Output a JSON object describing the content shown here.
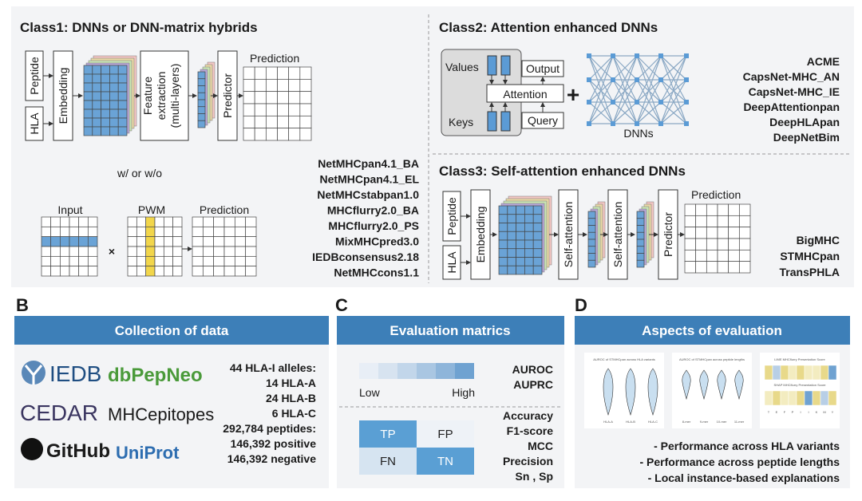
{
  "panel_a": {
    "class1": {
      "title": "Class1: DNNs or DNN-matrix hybrids",
      "peptide": "Peptide",
      "hla": "HLA",
      "embedding": "Embedding",
      "feature": [
        "Feature",
        "extraction",
        "(multi-layers)"
      ],
      "predictor": "Predictor",
      "prediction": "Prediction",
      "with_or_without": "w/ or w/o",
      "input": "Input",
      "times": "×",
      "pwm": "PWM",
      "prediction_pwm": "Prediction",
      "tools": [
        "NetMHCpan4.1_BA",
        "NetMHCpan4.1_EL",
        "NetMHCstabpan1.0",
        "MHCflurry2.0_BA",
        "MHCflurry2.0_PS",
        "MixMHCpred3.0",
        "IEDBconsensus2.18",
        "NetMHCcons1.1"
      ]
    },
    "class2": {
      "title": "Class2: Attention enhanced DNNs",
      "values": "Values",
      "keys": "Keys",
      "attention": "Attention",
      "output": "Output",
      "query": "Query",
      "plus": "+",
      "dnns": "DNNs",
      "tools": [
        "ACME",
        "CapsNet-MHC_AN",
        "CapsNet-MHC_IE",
        "DeepAttentionpan",
        "DeepHLApan",
        "DeepNetBim"
      ]
    },
    "class3": {
      "title": "Class3: Self-attention enhanced DNNs",
      "peptide": "Peptide",
      "hla": "HLA",
      "embedding": "Embedding",
      "self_attention_1": "Self-attention",
      "self_attention_2": "Self-attention",
      "predictor": "Predictor",
      "prediction": "Prediction",
      "tools": [
        "BigMHC",
        "STMHCpan",
        "TransPHLA"
      ]
    }
  },
  "panel_b": {
    "letter": "B",
    "header": "Collection of data",
    "logos": [
      "IEDB",
      "dbPepNeo",
      "CEDAR",
      "MHCepitopes",
      "GitHub",
      "UniProt"
    ],
    "stats": [
      "44 HLA-I alleles:",
      "14 HLA-A",
      "24 HLA-B",
      "6 HLA-C",
      "292,784 peptides:",
      "146,392 positive",
      "146,392 negative"
    ]
  },
  "panel_c": {
    "letter": "C",
    "header": "Evaluation matrics",
    "low": "Low",
    "high": "High",
    "curve_metrics": [
      "AUROC",
      "AUPRC"
    ],
    "confusion": [
      "TP",
      "FP",
      "FN",
      "TN"
    ],
    "metrics": [
      "Accuracy",
      "F1-score",
      "MCC",
      "Precision",
      "Sn , Sp"
    ]
  },
  "panel_d": {
    "letter": "D",
    "header": "Aspects of evaluation",
    "chart_1_title": "AUROC of STMHCpan across HLA variants",
    "chart_1_labels": [
      "HLA-A",
      "HLA-B",
      "HLA-C"
    ],
    "chart_2_title": "AUROC of STMHCpan across peptide lengths",
    "chart_2_labels": [
      "8-mer",
      "9-mer",
      "10-mer",
      "11-mer"
    ],
    "lime_title": "LIME MHCflurry Presentation Score",
    "shap_title": "SHAP MHCflurry Presentation Score",
    "residues": [
      "T",
      "E",
      "F",
      "P",
      "I",
      "I",
      "K",
      "M",
      "Y"
    ],
    "aspects": [
      "- Performance across HLA variants",
      "- Performance across peptide lengths",
      "- Local instance-based explanations"
    ]
  }
}
